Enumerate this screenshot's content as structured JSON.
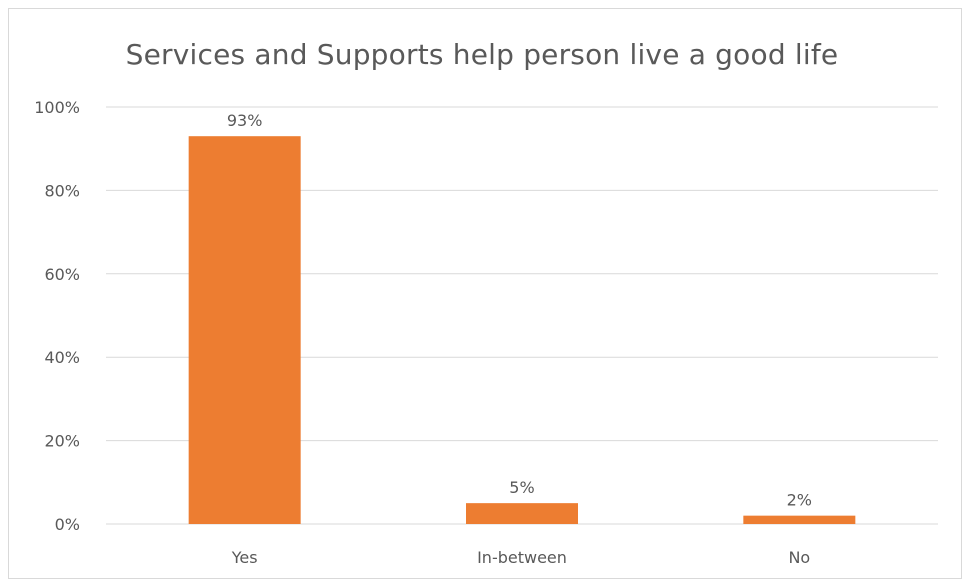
{
  "chart_data": {
    "type": "bar",
    "title": "Services and Supports help person live a good life",
    "xlabel": "",
    "ylabel": "",
    "categories": [
      "Yes",
      "In-between",
      "No"
    ],
    "values": [
      93,
      5,
      2
    ],
    "data_labels": [
      "93%",
      "5%",
      "2%"
    ],
    "ylim": [
      0,
      100
    ],
    "yticks": [
      0,
      20,
      40,
      60,
      80,
      100
    ],
    "ytick_labels": [
      "0%",
      "20%",
      "40%",
      "60%",
      "80%",
      "100%"
    ],
    "grid": true,
    "legend": "none",
    "bar_color": "#ed7d31",
    "grid_color": "#d9d9d9",
    "text_color": "#595959"
  }
}
